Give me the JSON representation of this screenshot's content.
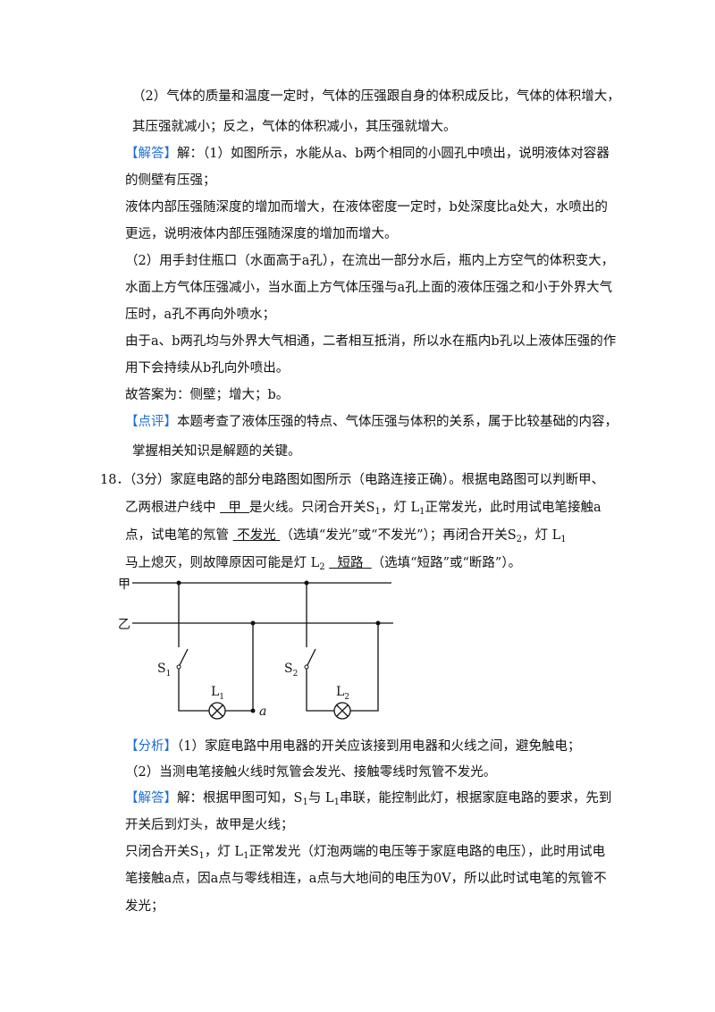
{
  "lines": [
    {
      "indent": true,
      "runs": [
        "（2）气体的质量和温度一定时，气体的压强跟自身的体积成反比，气体的体积增大，"
      ]
    },
    {
      "indent": true,
      "runs": [
        "其压强就减小；反之，气体的体积减小，其压强就增大。"
      ]
    },
    {
      "runs": [
        {
          "text": "【解答】",
          "style": "tag"
        },
        "解：（1）如图所示，水能从a、b两个相同的小圆孔中喷出，说明液体对容器"
      ]
    },
    {
      "runs": [
        "的侧壁有压强；"
      ]
    },
    {
      "runs": [
        "液体内部压强随深度的增加而增大，在液体密度一定时，b处深度比a处大，水喷出的"
      ]
    },
    {
      "runs": [
        "更远，说明液体内部压强随深度的增加而增大。"
      ]
    },
    {
      "runs": [
        "（2）用手封住瓶口（水面高于a孔），在流出一部分水后，瓶内上方空气的体积变大，"
      ]
    },
    {
      "runs": [
        "水面上方气体压强减小，当水面上方气体压强与a孔上面的液体压强之和小于外界大气"
      ]
    },
    {
      "runs": [
        "压时，a孔不再向外喷水；"
      ]
    },
    {
      "runs": [
        "由于a、b两孔均与外界大气相通，二者相互抵消，所以水在瓶内b孔以上液体压强的作"
      ]
    },
    {
      "runs": [
        "用下会持续从b孔向外喷出。"
      ]
    },
    {
      "runs": [
        "故答案为：侧壁；增大；b。"
      ]
    },
    {
      "runs": [
        {
          "text": "【点评】",
          "style": "tag"
        },
        "本题考查了液体压强的特点、气体压强与体积的关系，属于比较基础的内容，"
      ]
    },
    {
      "indent": true,
      "runs": [
        "掌握相关知识是解题的关键。"
      ]
    },
    {
      "question": true,
      "runs": [
        "18．（3分）家庭电路的部分电路图如图所示（电路连接正确）。根据电路图可以判断甲、"
      ]
    },
    {
      "runs": [
        "乙两根进户线中 ",
        {
          "text": "  甲  ",
          "style": "u"
        },
        "是火线。只闭合开关S",
        {
          "text": "1",
          "style": "sub"
        },
        "，灯 L",
        {
          "text": "1",
          "style": "sub"
        },
        "正常发光，此时用试电笔接触a"
      ]
    },
    {
      "runs": [
        "点，试电笔的氖管 ",
        {
          "text": " 不发光 ",
          "style": "u"
        },
        "（选填“发光”或“不发光”）；再闭合开关S",
        {
          "text": "2",
          "style": "sub"
        },
        "，灯 L",
        {
          "text": "1",
          "style": "sub"
        }
      ]
    },
    {
      "runs": [
        "马上熄灭，则故障原因可能是灯 L",
        {
          "text": "2",
          "style": "sub"
        },
        " ",
        {
          "text": "  短路  ",
          "style": "u"
        },
        "（选填“短路”或“断路”）。"
      ]
    },
    {
      "runs": [
        {
          "text": "【分析】",
          "style": "tag"
        },
        "（1）家庭电路中用电器的开关应该接到用电器和火线之间，避免触电；"
      ]
    },
    {
      "runs": [
        "（2）当测电笔接触火线时氖管会发光、接触零线时氖管不发光。"
      ]
    },
    {
      "runs": [
        {
          "text": "【解答】",
          "style": "tag"
        },
        "解：根据甲图可知，S",
        {
          "text": "1",
          "style": "sub"
        },
        "与 L",
        {
          "text": "1",
          "style": "sub"
        },
        "串联，能控制此灯，根据家庭电路的要求，先到"
      ]
    },
    {
      "runs": [
        "开关后到灯头，故甲是火线；"
      ]
    },
    {
      "runs": [
        "只闭合开关S",
        {
          "text": "1",
          "style": "sub"
        },
        "，灯 L",
        {
          "text": "1",
          "style": "sub"
        },
        "正常发光（灯泡两端的电压等于家庭电路的电压），此时用试电"
      ]
    },
    {
      "runs": [
        "笔接触a点，因a点与零线相连，a点与大地间的电压为0V，所以此时试电笔的氖管不"
      ]
    },
    {
      "runs": [
        "发光；"
      ]
    }
  ],
  "diagram": {
    "live": "甲",
    "neutral": "乙",
    "switch1": {
      "letter": "S",
      "sub": "1"
    },
    "lamp1": {
      "letter": "L",
      "sub": "1"
    },
    "switch2": {
      "letter": "S",
      "sub": "2"
    },
    "lamp2": {
      "letter": "L",
      "sub": "2"
    },
    "point": "a"
  }
}
